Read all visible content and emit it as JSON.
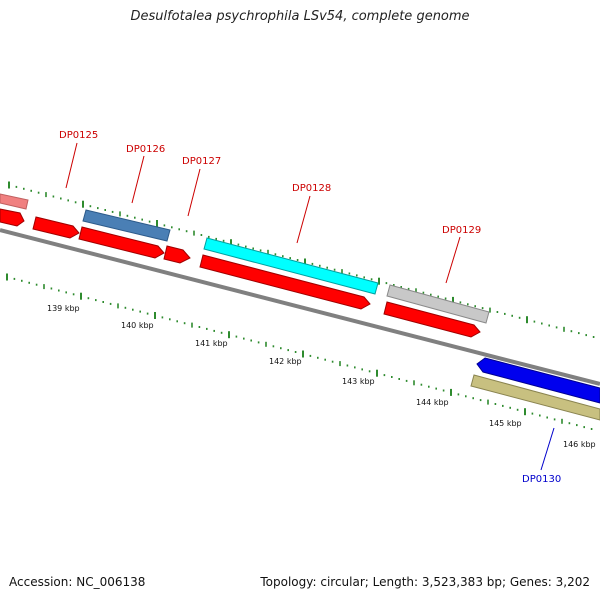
{
  "title": "Desulfotalea psychrophila LSv54, complete genome",
  "footer": {
    "accession": "Accession: NC_006138",
    "topology": "Topology: circular; Length: 3,523,383 bp; Genes: 3,202"
  },
  "colors": {
    "forward_cds": "#ff0000",
    "backbone": "#808080",
    "tick": "#2e8b2e",
    "label_red": "#cc0000",
    "label_blue": "#0000cc"
  },
  "gene_labels": [
    {
      "text": "DP0125",
      "color": "#cc0000"
    },
    {
      "text": "DP0126",
      "color": "#cc0000"
    },
    {
      "text": "DP0127",
      "color": "#cc0000"
    },
    {
      "text": "DP0128",
      "color": "#cc0000"
    },
    {
      "text": "DP0129",
      "color": "#cc0000"
    },
    {
      "text": "DP0130",
      "color": "#0000cc"
    }
  ],
  "kbp_labels": [
    "139 kbp",
    "140 kbp",
    "141 kbp",
    "142 kbp",
    "143 kbp",
    "144 kbp",
    "145 kbp",
    "146 kbp"
  ]
}
